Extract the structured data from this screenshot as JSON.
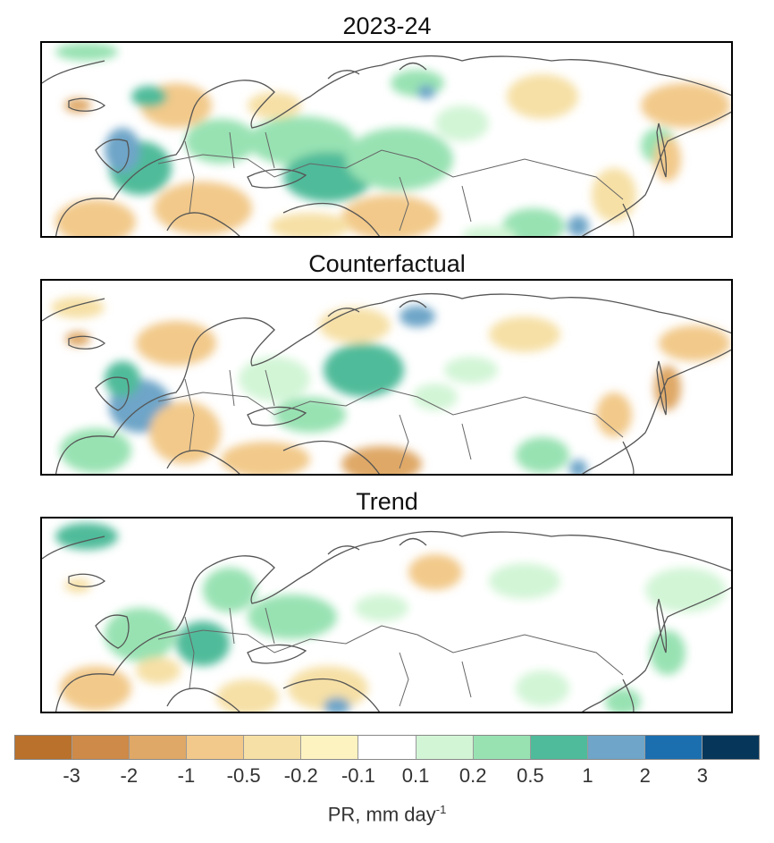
{
  "panels": [
    {
      "title": "2023-24",
      "key": "p1"
    },
    {
      "title": "Counterfactual",
      "key": "p2"
    },
    {
      "title": "Trend",
      "key": "p3"
    }
  ],
  "colorbar": {
    "colors": [
      "#b9712c",
      "#cd8a48",
      "#dfa866",
      "#f2c98a",
      "#f6e0a6",
      "#fdf3c1",
      "#ffffff",
      "#d2f5d6",
      "#98e2b2",
      "#4fbb9a",
      "#6ea5c8",
      "#1c6fae",
      "#06365a"
    ],
    "tick_labels": [
      "-3",
      "-2",
      "-1",
      "-0.5",
      "-0.2",
      "-0.1",
      "0.1",
      "0.2",
      "0.5",
      "1",
      "2",
      "3"
    ],
    "label": "PR, mm day",
    "label_superscript": "-1"
  },
  "colors": {
    "coast": "#555555",
    "border": "#666666"
  }
}
